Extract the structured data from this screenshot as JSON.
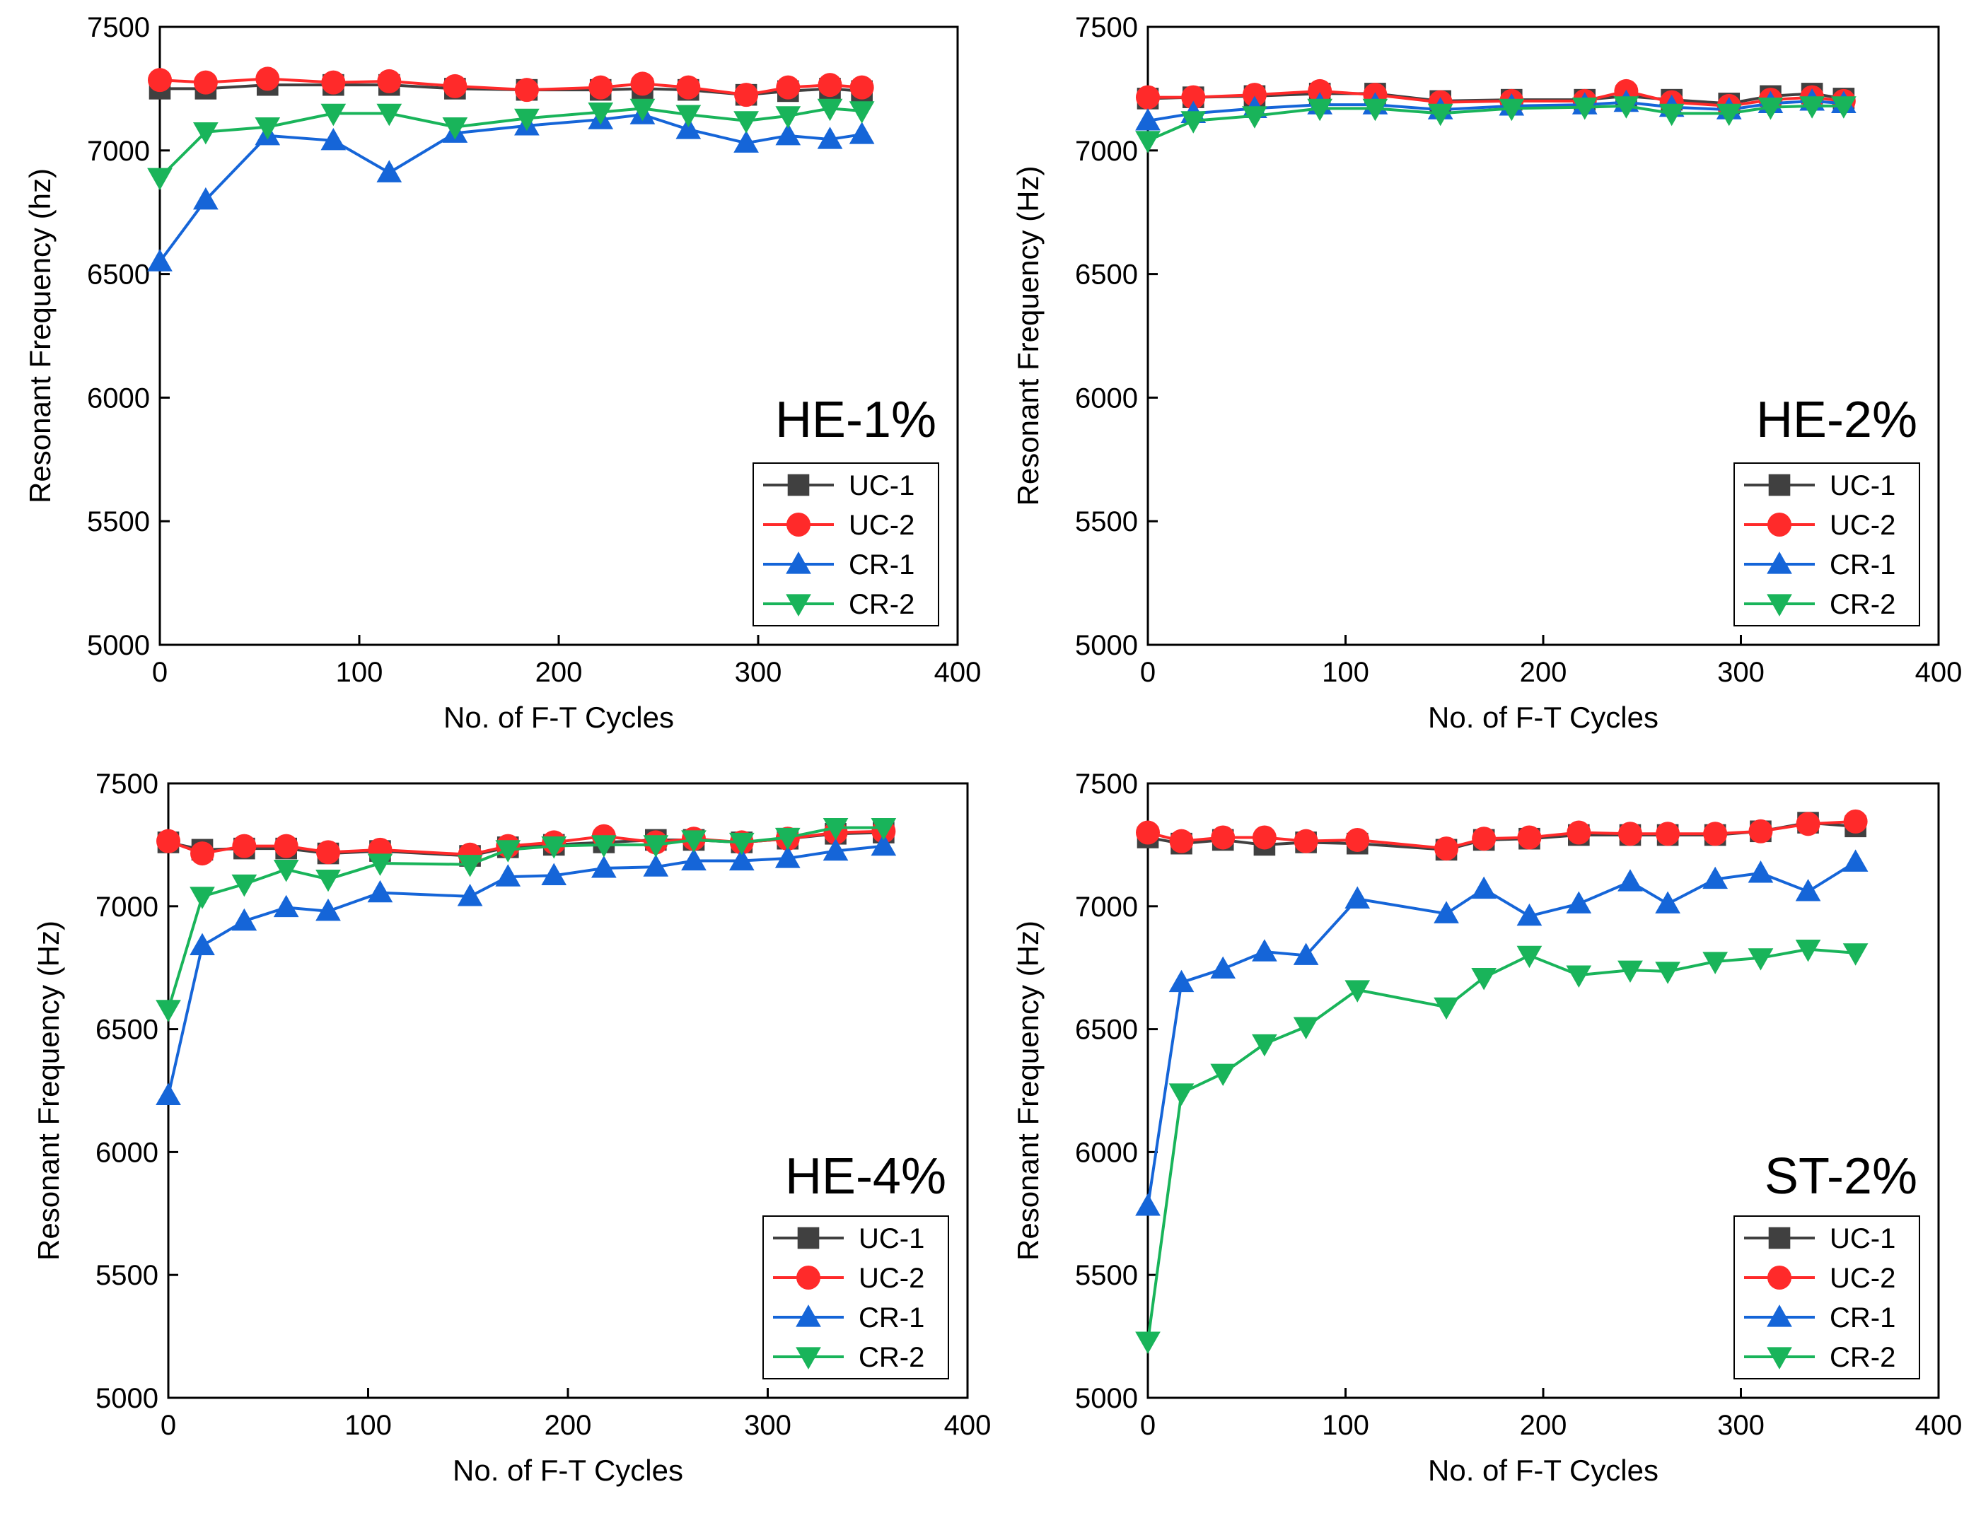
{
  "figure": {
    "caption_panels": 4
  },
  "chart_data": [
    {
      "type": "line",
      "panel_label": "HE-1%",
      "xlabel": "No. of F-T Cycles",
      "ylabel": "Resonant Frequency (hz)",
      "xlim": [
        0,
        400
      ],
      "ylim": [
        5000,
        7500
      ],
      "xticks": [
        0,
        100,
        200,
        300,
        400
      ],
      "yticks": [
        5000,
        5500,
        6000,
        6500,
        7000,
        7500
      ],
      "grid": false,
      "legend_position": "bottom-right",
      "series": [
        {
          "name": "UC-1",
          "marker": "square",
          "color": "#404040",
          "x": [
            0,
            23,
            54,
            87,
            115,
            148,
            184,
            221,
            242,
            265,
            294,
            315,
            336,
            352
          ],
          "y": [
            7250,
            7250,
            7265,
            7265,
            7265,
            7250,
            7245,
            7245,
            7250,
            7245,
            7225,
            7240,
            7250,
            7240
          ]
        },
        {
          "name": "UC-2",
          "marker": "circle",
          "color": "#ff2a2a",
          "x": [
            0,
            23,
            54,
            87,
            115,
            148,
            184,
            221,
            242,
            265,
            294,
            315,
            336,
            352
          ],
          "y": [
            7285,
            7275,
            7290,
            7275,
            7280,
            7260,
            7245,
            7255,
            7270,
            7255,
            7225,
            7255,
            7265,
            7255
          ]
        },
        {
          "name": "CR-1",
          "marker": "triangle-up",
          "color": "#1565d8",
          "x": [
            0,
            23,
            54,
            87,
            115,
            148,
            184,
            221,
            242,
            265,
            294,
            315,
            336,
            352
          ],
          "y": [
            6550,
            6800,
            7060,
            7040,
            6910,
            7070,
            7100,
            7125,
            7145,
            7085,
            7030,
            7060,
            7045,
            7065
          ]
        },
        {
          "name": "CR-2",
          "marker": "triangle-down",
          "color": "#19b45a",
          "x": [
            0,
            23,
            54,
            87,
            115,
            148,
            184,
            221,
            242,
            265,
            294,
            315,
            336,
            352
          ],
          "y": [
            6890,
            7075,
            7095,
            7150,
            7150,
            7095,
            7130,
            7155,
            7170,
            7145,
            7120,
            7140,
            7170,
            7160
          ]
        }
      ]
    },
    {
      "type": "line",
      "panel_label": "HE-2%",
      "xlabel": "No. of F-T Cycles",
      "ylabel": "Resonant Frequency (Hz)",
      "xlim": [
        0,
        400
      ],
      "ylim": [
        5000,
        7500
      ],
      "xticks": [
        0,
        100,
        200,
        300,
        400
      ],
      "yticks": [
        5000,
        5500,
        6000,
        6500,
        7000,
        7500
      ],
      "grid": false,
      "legend_position": "bottom-right",
      "series": [
        {
          "name": "UC-1",
          "marker": "square",
          "color": "#404040",
          "x": [
            0,
            23,
            54,
            87,
            115,
            148,
            184,
            221,
            242,
            265,
            294,
            315,
            336,
            352
          ],
          "y": [
            7210,
            7215,
            7220,
            7230,
            7230,
            7200,
            7205,
            7205,
            7220,
            7205,
            7190,
            7220,
            7230,
            7210
          ]
        },
        {
          "name": "UC-2",
          "marker": "circle",
          "color": "#ff2a2a",
          "x": [
            0,
            23,
            54,
            87,
            115,
            148,
            184,
            221,
            242,
            265,
            294,
            315,
            336,
            352
          ],
          "y": [
            7215,
            7215,
            7225,
            7240,
            7225,
            7195,
            7200,
            7200,
            7240,
            7195,
            7180,
            7205,
            7215,
            7200
          ]
        },
        {
          "name": "CR-1",
          "marker": "triangle-up",
          "color": "#1565d8",
          "x": [
            0,
            23,
            54,
            87,
            115,
            148,
            184,
            221,
            242,
            265,
            294,
            315,
            336,
            352
          ],
          "y": [
            7120,
            7150,
            7170,
            7185,
            7185,
            7165,
            7180,
            7185,
            7195,
            7175,
            7165,
            7190,
            7200,
            7190
          ]
        },
        {
          "name": "CR-2",
          "marker": "triangle-down",
          "color": "#19b45a",
          "x": [
            0,
            23,
            54,
            87,
            115,
            148,
            184,
            221,
            242,
            265,
            294,
            315,
            336,
            352
          ],
          "y": [
            7040,
            7120,
            7140,
            7170,
            7170,
            7150,
            7170,
            7175,
            7180,
            7150,
            7150,
            7175,
            7180,
            7180
          ]
        }
      ]
    },
    {
      "type": "line",
      "panel_label": "HE-4%",
      "xlabel": "No. of F-T Cycles",
      "ylabel": "Resonant Frequency (Hz)",
      "xlim": [
        0,
        400
      ],
      "ylim": [
        5000,
        7500
      ],
      "xticks": [
        0,
        100,
        200,
        300,
        400
      ],
      "yticks": [
        5000,
        5500,
        6000,
        6500,
        7000,
        7500
      ],
      "grid": false,
      "legend_position": "bottom-right",
      "series": [
        {
          "name": "UC-1",
          "marker": "square",
          "color": "#404040",
          "x": [
            0,
            17,
            38,
            59,
            80,
            106,
            151,
            170,
            193,
            218,
            244,
            263,
            287,
            310,
            334,
            358
          ],
          "y": [
            7260,
            7230,
            7235,
            7235,
            7215,
            7225,
            7205,
            7240,
            7250,
            7260,
            7270,
            7270,
            7260,
            7275,
            7295,
            7300
          ]
        },
        {
          "name": "UC-2",
          "marker": "circle",
          "color": "#ff2a2a",
          "x": [
            0,
            17,
            38,
            59,
            80,
            106,
            151,
            170,
            193,
            218,
            244,
            263,
            287,
            310,
            334,
            358
          ],
          "y": [
            7265,
            7215,
            7245,
            7245,
            7220,
            7230,
            7210,
            7245,
            7260,
            7285,
            7260,
            7275,
            7260,
            7275,
            7300,
            7305
          ]
        },
        {
          "name": "CR-1",
          "marker": "triangle-up",
          "color": "#1565d8",
          "x": [
            0,
            17,
            38,
            59,
            80,
            106,
            151,
            170,
            193,
            218,
            244,
            263,
            287,
            310,
            334,
            358
          ],
          "y": [
            6230,
            6840,
            6940,
            6995,
            6980,
            7055,
            7040,
            7120,
            7125,
            7155,
            7160,
            7185,
            7185,
            7195,
            7225,
            7245
          ]
        },
        {
          "name": "CR-2",
          "marker": "triangle-down",
          "color": "#19b45a",
          "x": [
            0,
            17,
            38,
            59,
            80,
            106,
            151,
            170,
            193,
            218,
            244,
            263,
            287,
            310,
            334,
            358
          ],
          "y": [
            6580,
            7040,
            7090,
            7150,
            7110,
            7175,
            7170,
            7230,
            7245,
            7250,
            7250,
            7270,
            7260,
            7280,
            7320,
            7320
          ]
        }
      ]
    },
    {
      "type": "line",
      "panel_label": "ST-2%",
      "xlabel": "No. of F-T Cycles",
      "ylabel": "Resonant Frequency (Hz)",
      "xlim": [
        0,
        400
      ],
      "ylim": [
        5000,
        7500
      ],
      "xticks": [
        0,
        100,
        200,
        300,
        400
      ],
      "yticks": [
        5000,
        5500,
        6000,
        6500,
        7000,
        7500
      ],
      "grid": false,
      "legend_position": "bottom-right",
      "series": [
        {
          "name": "UC-1",
          "marker": "square",
          "color": "#404040",
          "x": [
            0,
            17,
            38,
            59,
            80,
            106,
            151,
            170,
            193,
            218,
            244,
            263,
            287,
            310,
            334,
            358
          ],
          "y": [
            7280,
            7255,
            7270,
            7250,
            7260,
            7255,
            7230,
            7270,
            7275,
            7290,
            7290,
            7290,
            7290,
            7305,
            7340,
            7325
          ]
        },
        {
          "name": "UC-2",
          "marker": "circle",
          "color": "#ff2a2a",
          "x": [
            0,
            17,
            38,
            59,
            80,
            106,
            151,
            170,
            193,
            218,
            244,
            263,
            287,
            310,
            334,
            358
          ],
          "y": [
            7300,
            7265,
            7280,
            7280,
            7265,
            7270,
            7235,
            7275,
            7280,
            7300,
            7295,
            7295,
            7295,
            7305,
            7335,
            7345
          ]
        },
        {
          "name": "CR-1",
          "marker": "triangle-up",
          "color": "#1565d8",
          "x": [
            0,
            17,
            38,
            59,
            80,
            106,
            151,
            170,
            193,
            218,
            244,
            263,
            287,
            310,
            334,
            358
          ],
          "y": [
            5780,
            6690,
            6745,
            6815,
            6800,
            7030,
            6970,
            7070,
            6960,
            7010,
            7100,
            7010,
            7110,
            7135,
            7060,
            7180
          ]
        },
        {
          "name": "CR-2",
          "marker": "triangle-down",
          "color": "#19b45a",
          "x": [
            0,
            17,
            38,
            59,
            80,
            106,
            151,
            170,
            193,
            218,
            244,
            263,
            287,
            310,
            334,
            358
          ],
          "y": [
            5230,
            6240,
            6320,
            6440,
            6510,
            6660,
            6590,
            6710,
            6800,
            6720,
            6740,
            6735,
            6775,
            6790,
            6825,
            6810
          ]
        }
      ]
    }
  ]
}
